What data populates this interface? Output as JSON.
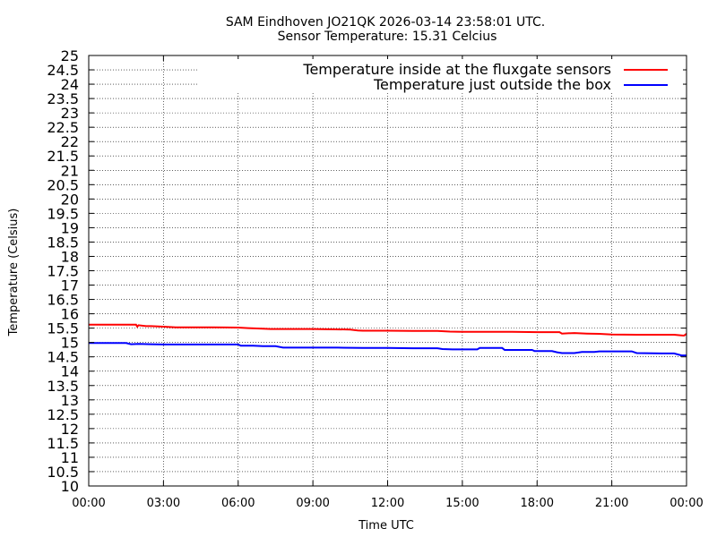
{
  "chart_data": {
    "type": "line",
    "title_line1": "SAM Eindhoven JO21QK 2026-03-14 23:58:01 UTC.",
    "title_line2": "Sensor Temperature: 15.31 Celcius",
    "xlabel": "Time UTC",
    "ylabel": "Temperature (Celsius)",
    "xlim": [
      0,
      24
    ],
    "ylim": [
      10,
      25
    ],
    "x_ticks": [
      0,
      3,
      6,
      9,
      12,
      15,
      18,
      21,
      24
    ],
    "x_tick_labels": [
      "00:00",
      "03:00",
      "06:00",
      "09:00",
      "12:00",
      "15:00",
      "18:00",
      "21:00",
      "00:00"
    ],
    "y_ticks": [
      10,
      10.5,
      11,
      11.5,
      12,
      12.5,
      13,
      13.5,
      14,
      14.5,
      15,
      15.5,
      16,
      16.5,
      17,
      17.5,
      18,
      18.5,
      19,
      19.5,
      20,
      20.5,
      21,
      21.5,
      22,
      22.5,
      23,
      23.5,
      24,
      24.5,
      25
    ],
    "y_tick_labels": [
      "10",
      "10.5",
      "11",
      "11.5",
      "12",
      "12.5",
      "13",
      "13.5",
      "14",
      "14.5",
      "15",
      "15.5",
      "16",
      "16.5",
      "17",
      "17.5",
      "18",
      "18.5",
      "19",
      "19.5",
      "20",
      "20.5",
      "21",
      "21.5",
      "22",
      "22.5",
      "23",
      "23.5",
      "24",
      "24.5",
      "25"
    ],
    "grid": true,
    "legend_position": "top-right",
    "series": [
      {
        "name": "Temperature inside at the fluxgate sensors",
        "color": "#ff0000",
        "x": [
          0,
          1.9,
          1.95,
          2.0,
          2.3,
          2.5,
          3.0,
          3.5,
          4.0,
          5.0,
          6.0,
          6.4,
          7.0,
          7.3,
          7.5,
          9.0,
          10.5,
          10.8,
          11.0,
          12.0,
          13.0,
          14.0,
          14.5,
          15.0,
          16.0,
          17.0,
          18.0,
          18.9,
          19.0,
          19.5,
          20.0,
          20.5,
          21.0,
          22.0,
          23.0,
          23.5,
          23.9,
          24.0
        ],
        "y": [
          15.62,
          15.62,
          15.55,
          15.6,
          15.57,
          15.57,
          15.55,
          15.53,
          15.53,
          15.53,
          15.52,
          15.5,
          15.48,
          15.47,
          15.47,
          15.47,
          15.45,
          15.42,
          15.41,
          15.41,
          15.4,
          15.4,
          15.38,
          15.37,
          15.37,
          15.37,
          15.36,
          15.36,
          15.31,
          15.33,
          15.31,
          15.3,
          15.28,
          15.27,
          15.27,
          15.27,
          15.24,
          15.3
        ]
      },
      {
        "name": "Temperature just outside the box",
        "color": "#0000ff",
        "x": [
          0,
          1.5,
          1.7,
          2.0,
          2.5,
          3.0,
          4.0,
          5.0,
          6.0,
          6.1,
          6.6,
          7.0,
          7.5,
          7.8,
          8.0,
          9.0,
          10.0,
          11.0,
          12.0,
          13.0,
          14.0,
          14.2,
          14.6,
          15.0,
          15.6,
          15.7,
          16.6,
          16.7,
          17.8,
          17.9,
          18.6,
          18.8,
          19.0,
          19.5,
          19.8,
          20.3,
          20.5,
          21.0,
          21.8,
          22.0,
          23.0,
          23.5,
          23.8,
          24.0
        ],
        "y": [
          14.98,
          14.98,
          14.94,
          14.95,
          14.94,
          14.93,
          14.93,
          14.93,
          14.93,
          14.89,
          14.89,
          14.87,
          14.87,
          14.82,
          14.82,
          14.82,
          14.82,
          14.81,
          14.81,
          14.8,
          14.8,
          14.77,
          14.76,
          14.76,
          14.76,
          14.81,
          14.81,
          14.74,
          14.74,
          14.7,
          14.7,
          14.66,
          14.63,
          14.63,
          14.67,
          14.67,
          14.69,
          14.69,
          14.69,
          14.63,
          14.62,
          14.62,
          14.55,
          14.55
        ]
      }
    ]
  }
}
